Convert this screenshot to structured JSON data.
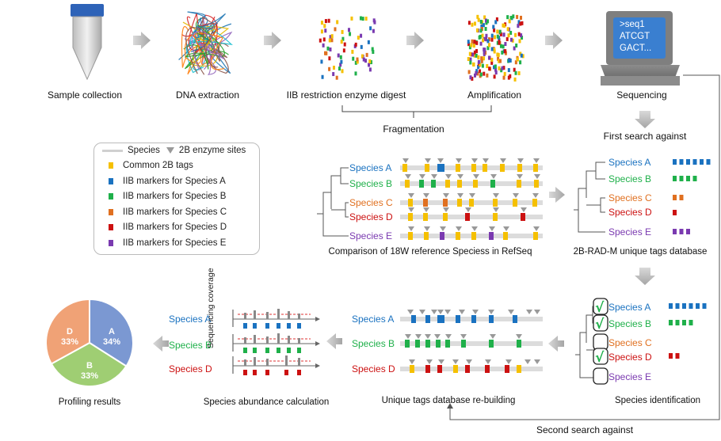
{
  "steps": {
    "sample_collection": "Sample collection",
    "dna_extraction": "DNA extraction",
    "digest": "IIB restriction enzyme digest",
    "amplification": "Amplification",
    "sequencing": "Sequencing",
    "fragmentation": "Fragmentation"
  },
  "screen": {
    "line1": ">seq1",
    "line2": "ATCGT",
    "line3": "GACT..."
  },
  "search": {
    "first": "First search against",
    "second": "Second search against"
  },
  "legend": {
    "species_line": "Species",
    "enzyme_sites": "2B enzyme sites",
    "items": [
      {
        "label": "Common 2B tags",
        "color": "#f5c000"
      },
      {
        "label": "IIB markers  for Species A",
        "color": "#1a72c0"
      },
      {
        "label": "IIB markers  for Species B",
        "color": "#1fb04a"
      },
      {
        "label": "IIB markers  for Species C",
        "color": "#e07020"
      },
      {
        "label": "IIB markers  for Species D",
        "color": "#cc1111"
      },
      {
        "label": "IIB markers  for Species E",
        "color": "#7a3ab0"
      }
    ]
  },
  "species": {
    "A": {
      "name": "Species A",
      "color": "#1a72c0"
    },
    "B": {
      "name": "Species B",
      "color": "#1fb04a"
    },
    "C": {
      "name": "Species C",
      "color": "#e07020"
    },
    "D": {
      "name": "Species D",
      "color": "#cc1111"
    },
    "E": {
      "name": "Species E",
      "color": "#7a3ab0"
    }
  },
  "captions": {
    "comparison": "Comparison of 18W reference Speciess in RefSeq",
    "database": "2B-RAD-M unique tags database",
    "identification": "Species identification",
    "rebuilding": "Unique tags database re-building",
    "abundance": "Species abundance calculation",
    "profiling": "Profiling results",
    "coverage": "Sequencing coverage"
  },
  "pie": {
    "slices": [
      {
        "label": "A",
        "value": 34,
        "text": "34%",
        "color": "#7b98d2"
      },
      {
        "label": "B",
        "value": 33,
        "text": "33%",
        "color": "#9fce73"
      },
      {
        "label": "D",
        "value": 33,
        "text": "33%",
        "color": "#f0a276"
      }
    ]
  },
  "check_mark": "√"
}
